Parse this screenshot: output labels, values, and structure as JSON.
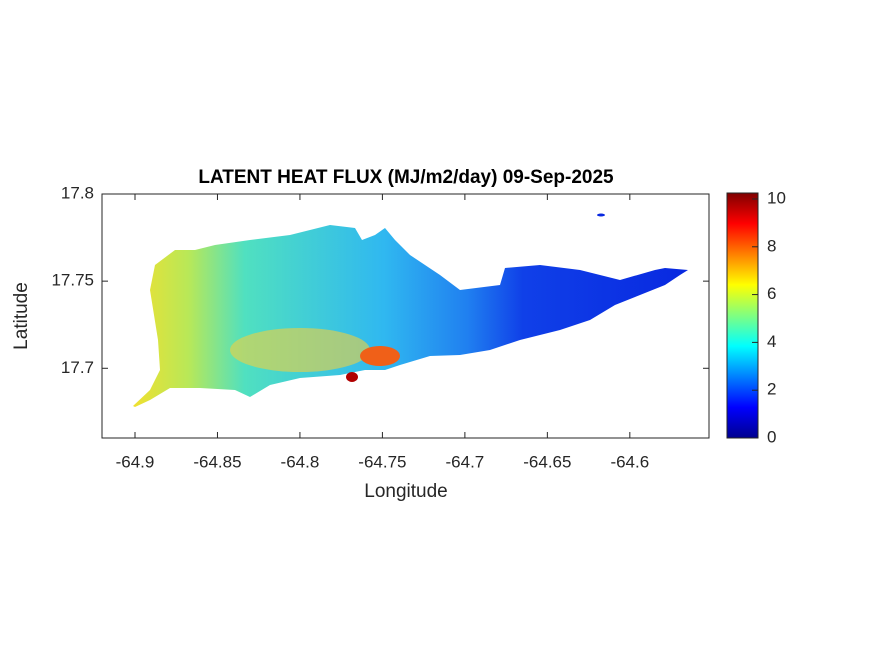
{
  "chart_data": {
    "type": "map",
    "title": "LATENT HEAT FLUX (MJ/m2/day) 09-Sep-2025",
    "xlabel": "Longitude",
    "ylabel": "Latitude",
    "xlim": [
      -64.92,
      -64.552
    ],
    "xticks": [
      -64.9,
      -64.85,
      -64.8,
      -64.75,
      -64.7,
      -64.65,
      -64.6
    ],
    "ylim": [
      17.66,
      17.8
    ],
    "yticks": [
      17.7,
      17.75,
      17.8
    ],
    "colormap": "jet",
    "clim": [
      0,
      10.25
    ],
    "cticks": [
      0,
      2,
      4,
      6,
      8,
      10
    ]
  }
}
